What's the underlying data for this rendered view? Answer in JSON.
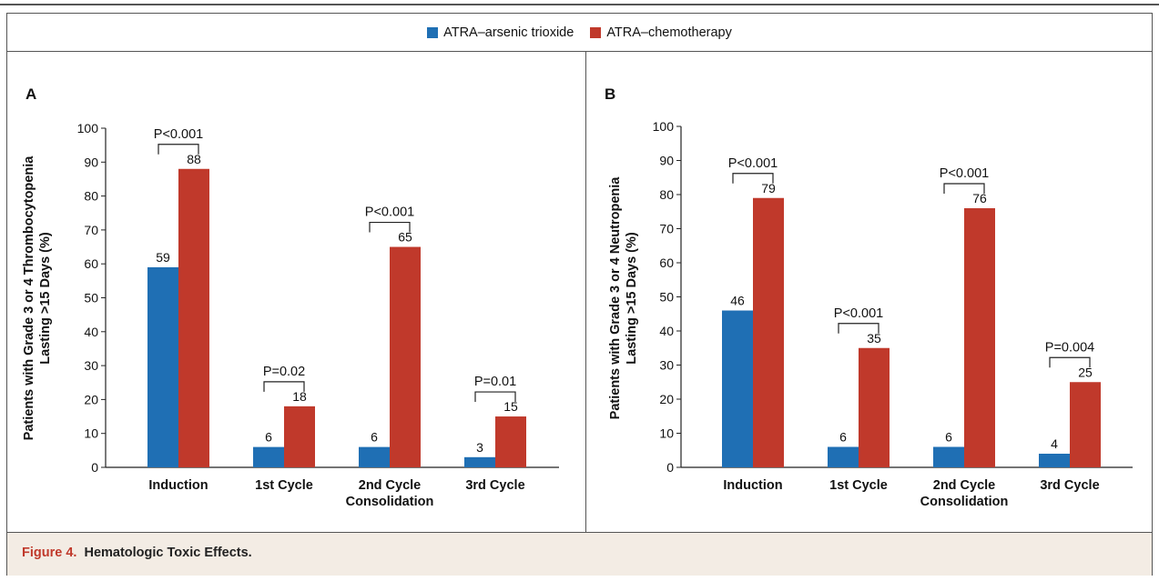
{
  "legend": {
    "items": [
      {
        "label": "ATRA–arsenic trioxide",
        "color": "#1f6fb4"
      },
      {
        "label": "ATRA–chemotherapy",
        "color": "#c0392b"
      }
    ]
  },
  "caption": {
    "figure_label": "Figure 4.",
    "text": "Hematologic Toxic Effects."
  },
  "chart_data": [
    {
      "type": "bar",
      "panel_label": "A",
      "ylabel_line1": "Patients with Grade 3 or 4 Thrombocytopenia",
      "ylabel_line2": "Lasting >15 Days (%)",
      "ylim": [
        0,
        100
      ],
      "yticks": [
        0,
        10,
        20,
        30,
        40,
        50,
        60,
        70,
        80,
        90,
        100
      ],
      "categories": [
        [
          "Induction"
        ],
        [
          "1st Cycle"
        ],
        [
          "2nd Cycle",
          "Consolidation"
        ],
        [
          "3rd Cycle"
        ]
      ],
      "series": [
        {
          "name": "ATRA–arsenic trioxide",
          "color": "#1f6fb4",
          "values": [
            59,
            6,
            6,
            3
          ]
        },
        {
          "name": "ATRA–chemotherapy",
          "color": "#c0392b",
          "values": [
            88,
            18,
            65,
            15
          ]
        }
      ],
      "annotations": [
        "P<0.001",
        "P=0.02",
        "P<0.001",
        "P=0.01"
      ]
    },
    {
      "type": "bar",
      "panel_label": "B",
      "ylabel_line1": "Patients with Grade 3 or 4 Neutropenia",
      "ylabel_line2": "Lasting >15 Days (%)",
      "ylim": [
        0,
        100
      ],
      "yticks": [
        0,
        10,
        20,
        30,
        40,
        50,
        60,
        70,
        80,
        90,
        100
      ],
      "categories": [
        [
          "Induction"
        ],
        [
          "1st Cycle"
        ],
        [
          "2nd Cycle",
          "Consolidation"
        ],
        [
          "3rd Cycle"
        ]
      ],
      "series": [
        {
          "name": "ATRA–arsenic trioxide",
          "color": "#1f6fb4",
          "values": [
            46,
            6,
            6,
            4
          ]
        },
        {
          "name": "ATRA–chemotherapy",
          "color": "#c0392b",
          "values": [
            79,
            35,
            76,
            25
          ]
        }
      ],
      "annotations": [
        "P<0.001",
        "P<0.001",
        "P<0.001",
        "P=0.004"
      ]
    }
  ]
}
